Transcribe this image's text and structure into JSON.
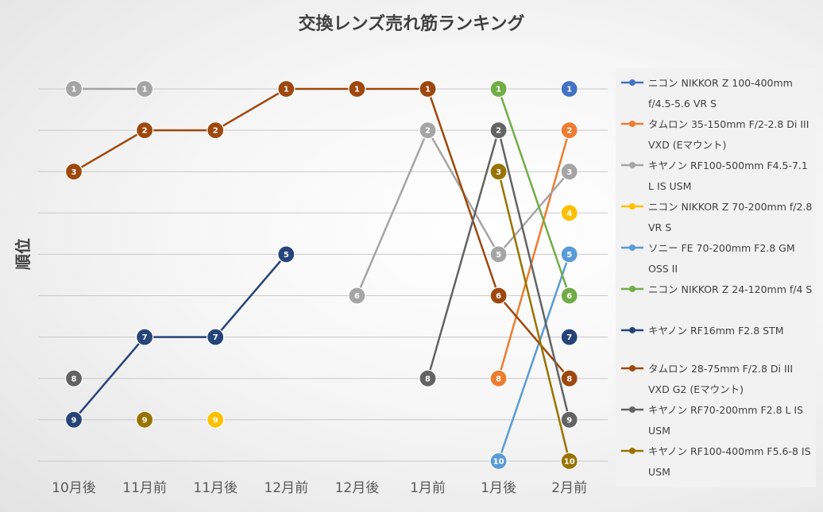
{
  "chart_data": {
    "type": "line",
    "title": "交換レンズ売れ筋ランキング",
    "ylabel": "順位",
    "xlabel": "",
    "categories": [
      "10月後",
      "11月前",
      "11月後",
      "12月前",
      "12月後",
      "1月前",
      "1月後",
      "2月前"
    ],
    "ylim": [
      0.5,
      10
    ],
    "y_inverted": true,
    "grid": true,
    "legend_position": "right",
    "series": [
      {
        "name": "ニコン NIKKOR Z 100-400mm f/4.5-5.6 VR S",
        "color": "#4472C4",
        "values": [
          null,
          null,
          null,
          null,
          null,
          null,
          null,
          1
        ]
      },
      {
        "name": "タムロン 35-150mm F/2-2.8 Di III VXD (Eマウント)",
        "color": "#ED7D31",
        "values": [
          null,
          null,
          null,
          null,
          null,
          null,
          8,
          2
        ]
      },
      {
        "name": "キヤノン RF100-500mm F4.5-7.1 L IS USM",
        "color": "#A5A5A5",
        "values": [
          1,
          1,
          null,
          null,
          6,
          2,
          5,
          3
        ]
      },
      {
        "name": "ニコン NIKKOR Z 70-200mm f/2.8 VR S",
        "color": "#FFC000",
        "values": [
          null,
          null,
          9,
          null,
          null,
          null,
          null,
          4
        ]
      },
      {
        "name": "ソニー FE 70-200mm F2.8 GM OSS II",
        "color": "#5B9BD5",
        "values": [
          null,
          null,
          null,
          null,
          null,
          null,
          10,
          5
        ]
      },
      {
        "name": "ニコン NIKKOR Z 24-120mm f/4 S",
        "color": "#70AD47",
        "values": [
          null,
          null,
          null,
          null,
          null,
          null,
          1,
          6
        ]
      },
      {
        "name": "キヤノン RF16mm F2.8 STM",
        "color": "#264478",
        "values": [
          9,
          7,
          7,
          5,
          null,
          null,
          null,
          7
        ]
      },
      {
        "name": "タムロン 28-75mm F/2.8 Di III VXD G2 (Eマウント)",
        "color": "#9E480E",
        "values": [
          3,
          2,
          2,
          1,
          1,
          1,
          6,
          8
        ]
      },
      {
        "name": "キヤノン RF70-200mm F2.8 L IS USM",
        "color": "#636363",
        "values": [
          8,
          null,
          null,
          null,
          null,
          8,
          2,
          9
        ]
      },
      {
        "name": "キヤノン RF100-400mm F5.6-8 IS USM",
        "color": "#997300",
        "values": [
          null,
          9,
          null,
          null,
          null,
          null,
          3,
          10
        ]
      }
    ]
  }
}
